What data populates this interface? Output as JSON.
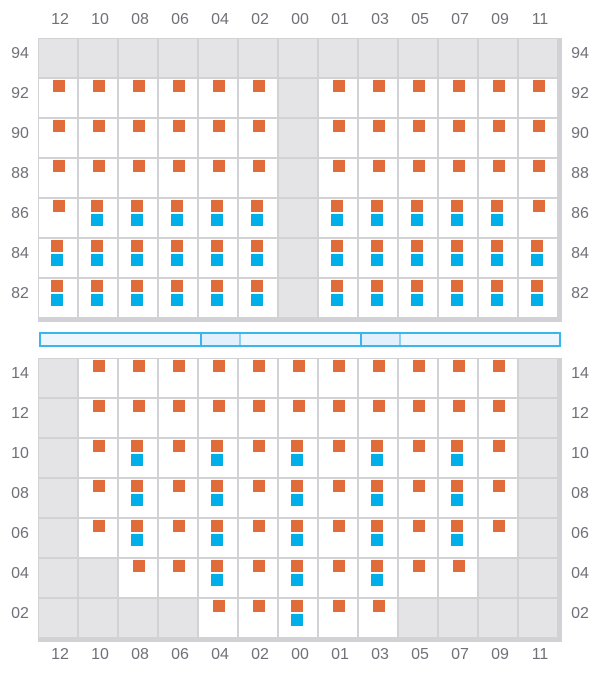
{
  "columns": [
    "12",
    "10",
    "08",
    "06",
    "04",
    "02",
    "00",
    "01",
    "03",
    "05",
    "07",
    "09",
    "11"
  ],
  "legend_codes": {
    "x": "blocked",
    "o": "orange marker",
    "b": "orange and blue markers"
  },
  "colors": {
    "orange": "#e06c3a",
    "blue": "#00aee8",
    "blocked": "#e4e4e6",
    "grid": "#d2d2d6",
    "bar": "#3cb4ec"
  },
  "top_section": {
    "rows": [
      {
        "label": "94",
        "cells": "xxxxxxxxxxxxx"
      },
      {
        "label": "92",
        "cells": "ooooooxoooooo"
      },
      {
        "label": "90",
        "cells": "ooooooxoooooo"
      },
      {
        "label": "88",
        "cells": "ooooooxoooooo"
      },
      {
        "label": "86",
        "cells": "obbbbbxbbbbbo"
      },
      {
        "label": "84",
        "cells": "bbbbbbxbbbbbb"
      },
      {
        "label": "82",
        "cells": "bbbbbbxbbbbbb"
      }
    ]
  },
  "divider_bar": {
    "highlighted_columns": [
      "04",
      "03"
    ]
  },
  "bottom_section": {
    "rows": [
      {
        "label": "14",
        "cells": "xooooooooooox"
      },
      {
        "label": "12",
        "cells": "xooooooooooox"
      },
      {
        "label": "10",
        "cells": "xobobobobobox"
      },
      {
        "label": "08",
        "cells": "xobobobobobox"
      },
      {
        "label": "06",
        "cells": "xobobobobobox"
      },
      {
        "label": "04",
        "cells": "xxoobobobooxx"
      },
      {
        "label": "02",
        "cells": "xxxxoobooxxxx"
      }
    ]
  }
}
